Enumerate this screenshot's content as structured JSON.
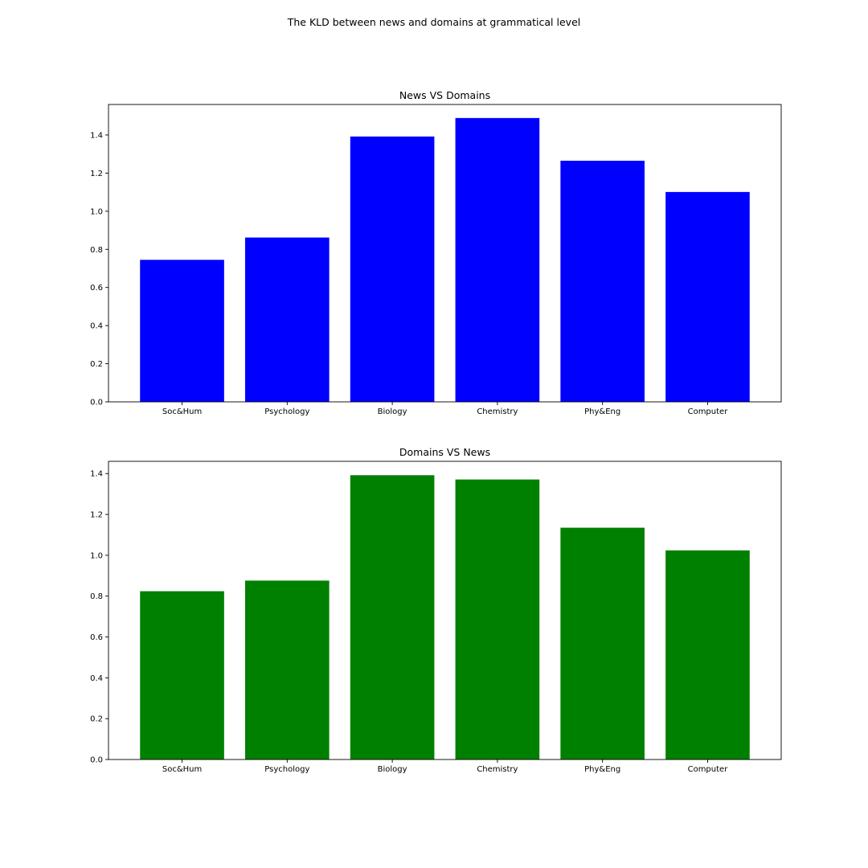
{
  "figure": {
    "suptitle": "The KLD between news and domains at grammatical level"
  },
  "chart_data": [
    {
      "type": "bar",
      "title": "News VS Domains",
      "xlabel": "",
      "ylabel": "",
      "categories": [
        "Soc&Hum",
        "Psychology",
        "Biology",
        "Chemistry",
        "Phy&Eng",
        "Computer"
      ],
      "values": [
        0.745,
        0.862,
        1.392,
        1.489,
        1.265,
        1.101
      ],
      "ylim": [
        0,
        1.56
      ],
      "yticks": [
        0.0,
        0.2,
        0.4,
        0.6,
        0.8,
        1.0,
        1.2,
        1.4
      ],
      "ytick_labels": [
        "0.0",
        "0.2",
        "0.4",
        "0.6",
        "0.8",
        "1.0",
        "1.2",
        "1.4"
      ],
      "color": "#0000ff",
      "grid": false,
      "legend": "none"
    },
    {
      "type": "bar",
      "title": "Domains VS News",
      "xlabel": "",
      "ylabel": "",
      "categories": [
        "Soc&Hum",
        "Psychology",
        "Biology",
        "Chemistry",
        "Phy&Eng",
        "Computer"
      ],
      "values": [
        0.824,
        0.876,
        1.392,
        1.371,
        1.135,
        1.024
      ],
      "ylim": [
        0,
        1.46
      ],
      "yticks": [
        0.0,
        0.2,
        0.4,
        0.6,
        0.8,
        1.0,
        1.2,
        1.4
      ],
      "ytick_labels": [
        "0.0",
        "0.2",
        "0.4",
        "0.6",
        "0.8",
        "1.0",
        "1.2",
        "1.4"
      ],
      "color": "#008000",
      "grid": false,
      "legend": "none"
    }
  ]
}
